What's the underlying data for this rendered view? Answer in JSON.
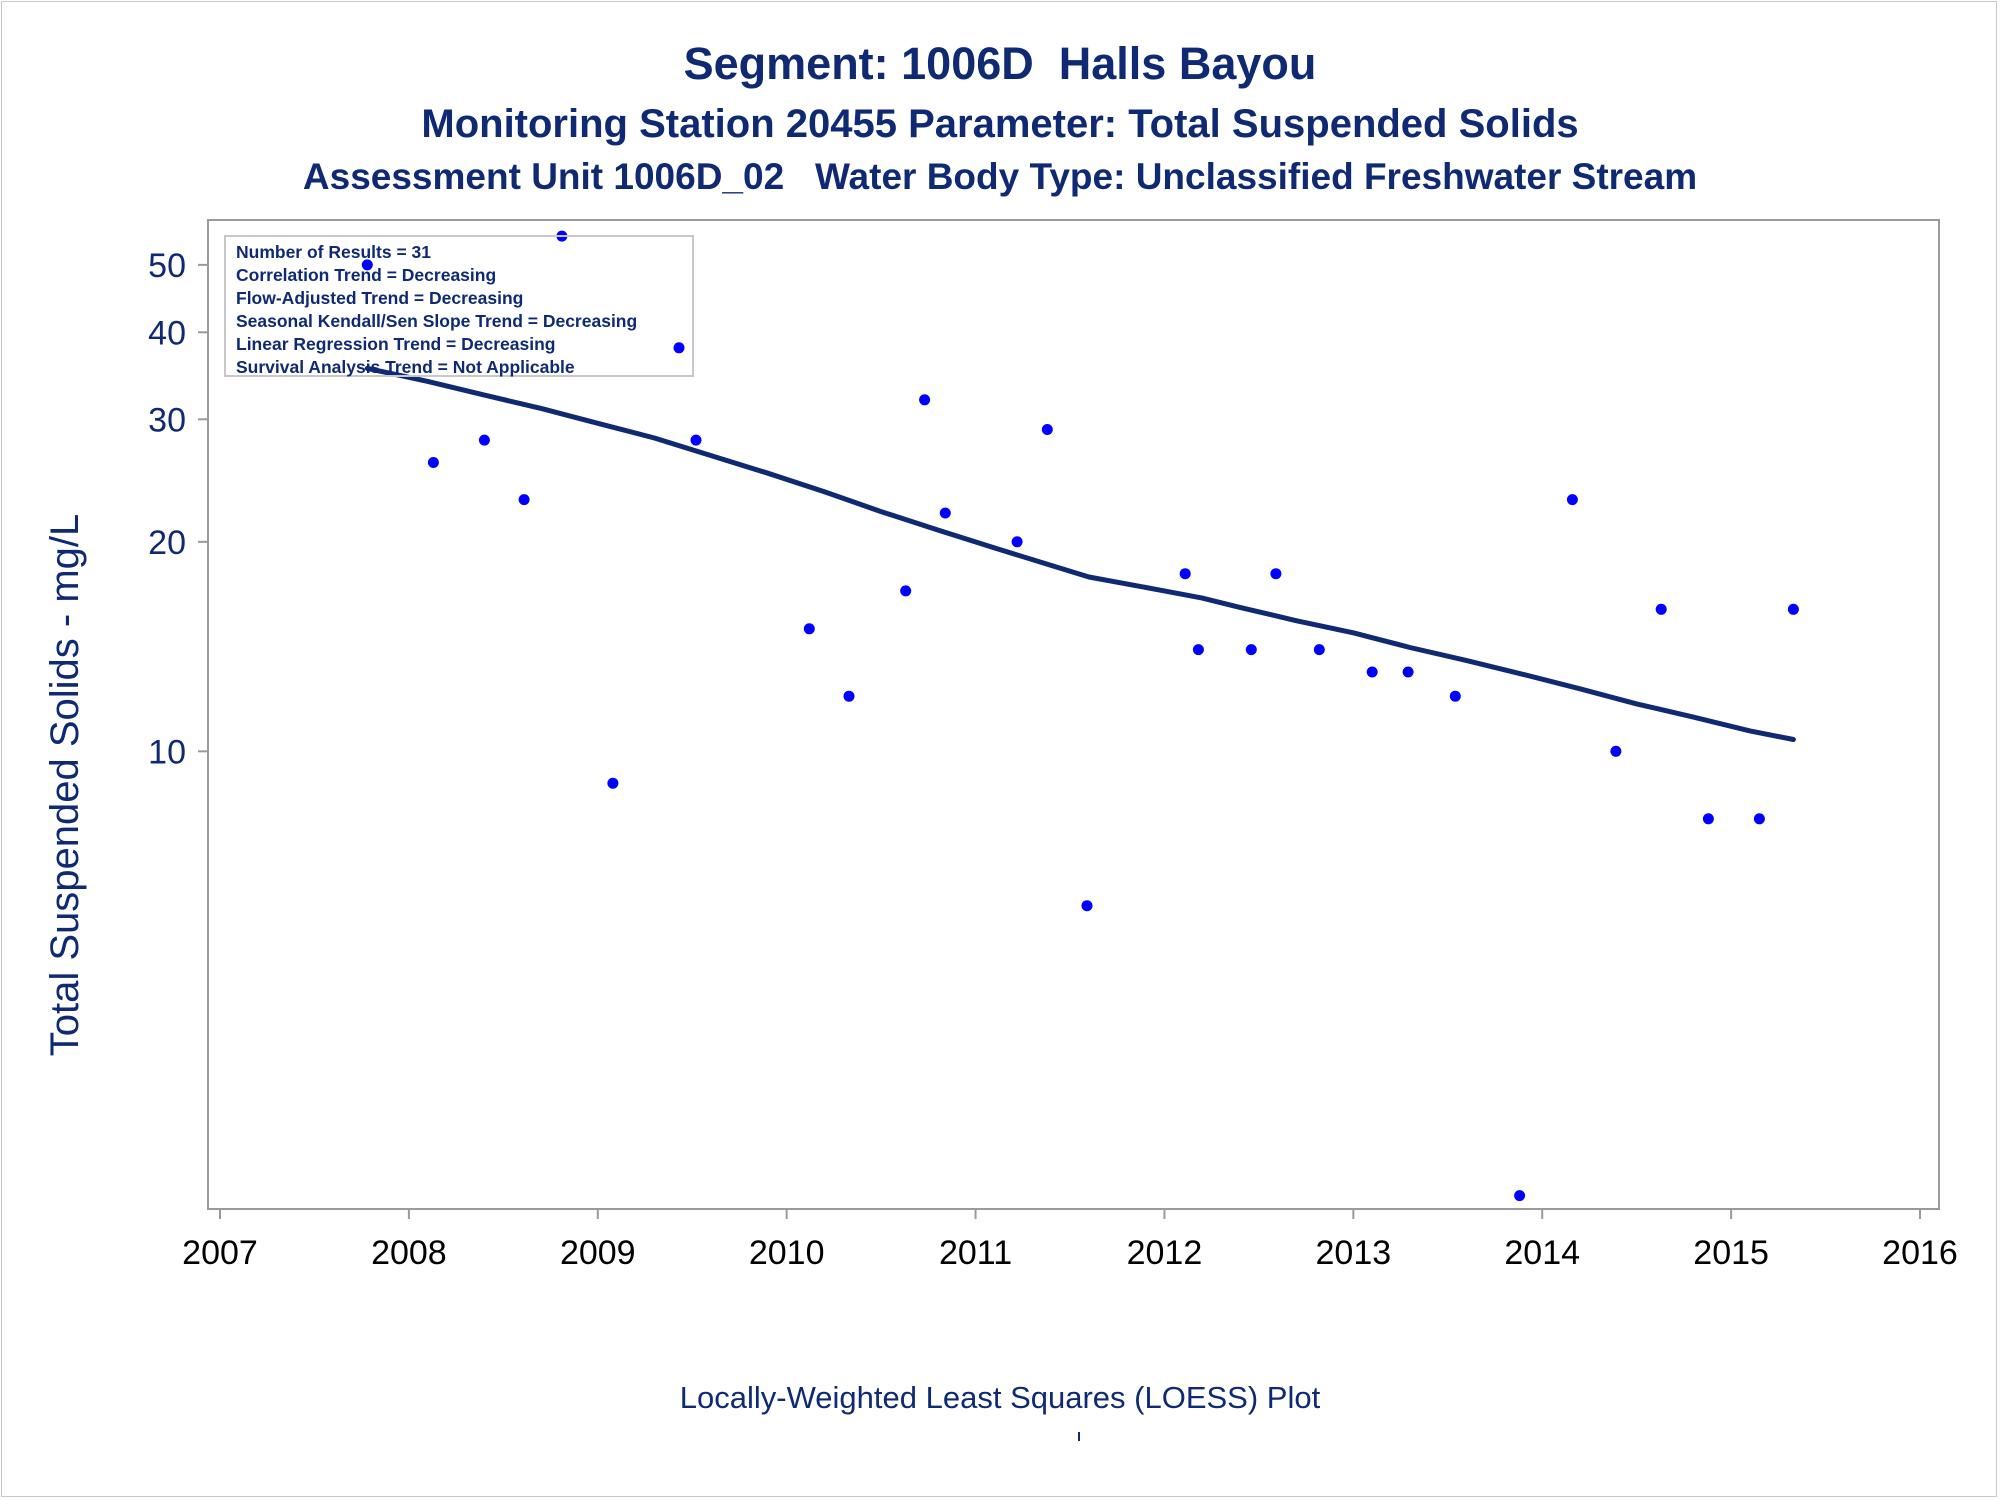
{
  "chart_data": {
    "type": "scatter",
    "title": "Segment: 1006D  Halls Bayou",
    "subtitle": "Monitoring Station 20455 Parameter: Total Suspended Solids",
    "subtitle2": "Assessment Unit 1006D_02   Water Body Type: Unclassified Freshwater Stream",
    "xlabel": "",
    "ylabel": "Total Suspended Solids - mg/L",
    "footer": "Locally-Weighted Least Squares (LOESS) Plot",
    "y_scale": "log",
    "xlim": [
      2007,
      2016
    ],
    "ylim": [
      2.2,
      58
    ],
    "x_ticks": [
      2007,
      2008,
      2009,
      2010,
      2011,
      2012,
      2013,
      2014,
      2015,
      2016
    ],
    "y_ticks": [
      10,
      20,
      30,
      40,
      50
    ],
    "grid": false,
    "stats_box": [
      "Number of Results = 31",
      "Correlation Trend = Decreasing",
      "Flow-Adjusted Trend = Decreasing",
      "Seasonal Kendall/Sen Slope Trend = Decreasing",
      "Linear Regression Trend = Decreasing",
      "Survival Analysis Trend = Not Applicable"
    ],
    "series": [
      {
        "type": "scatter",
        "color": "#0000ff",
        "x": [
          2007.78,
          2008.13,
          2008.4,
          2008.61,
          2008.81,
          2009.08,
          2009.43,
          2009.52,
          2010.12,
          2010.33,
          2010.63,
          2010.73,
          2010.84,
          2011.22,
          2011.38,
          2011.59,
          2012.11,
          2012.18,
          2012.46,
          2012.59,
          2012.82,
          2013.1,
          2013.29,
          2013.54,
          2013.88,
          2014.16,
          2014.39,
          2014.63,
          2014.88,
          2015.15,
          2015.33
        ],
        "y": [
          50,
          26,
          28,
          23,
          55,
          9,
          38,
          28,
          15,
          12,
          17,
          32,
          22,
          20,
          29,
          6,
          18,
          14,
          14,
          18,
          14,
          13,
          13,
          12,
          2.3,
          23,
          10,
          16,
          8,
          8,
          16
        ]
      },
      {
        "type": "line",
        "color": "#0f2a73",
        "x": [
          2007.78,
          2008.1,
          2008.4,
          2008.7,
          2009.0,
          2009.3,
          2009.6,
          2009.9,
          2010.2,
          2010.5,
          2010.8,
          2011.1,
          2011.4,
          2011.6,
          2012.0,
          2012.2,
          2012.4,
          2012.7,
          2013.0,
          2013.3,
          2013.6,
          2013.9,
          2014.2,
          2014.5,
          2014.8,
          2015.1,
          2015.33
        ],
        "y": [
          35.5,
          34.0,
          32.5,
          31.1,
          29.6,
          28.2,
          26.6,
          25.1,
          23.6,
          22.1,
          20.8,
          19.6,
          18.5,
          17.8,
          17.0,
          16.6,
          16.1,
          15.4,
          14.8,
          14.1,
          13.5,
          12.9,
          12.3,
          11.7,
          11.2,
          10.7,
          10.4
        ]
      }
    ]
  }
}
